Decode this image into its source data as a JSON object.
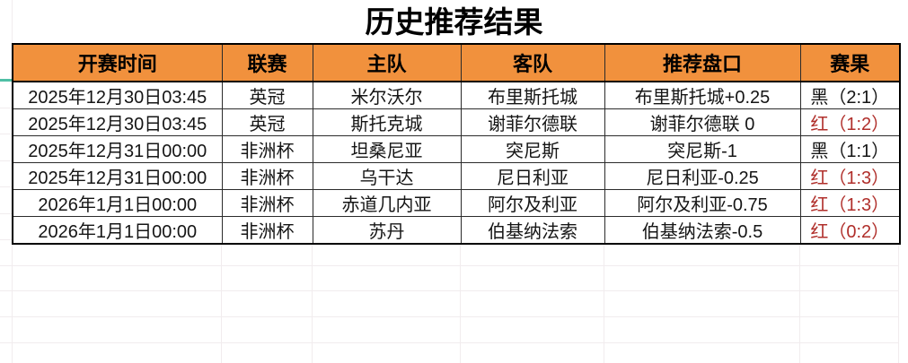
{
  "title": "历史推荐结果",
  "table": {
    "headers": [
      "开赛时间",
      "联赛",
      "主队",
      "客队",
      "推荐盘口",
      "赛果"
    ],
    "rows": [
      {
        "time": "2025年12月30日03:45",
        "league": "英冠",
        "home": "米尔沃尔",
        "away": "布里斯托城",
        "handicap": "布里斯托城+0.25",
        "result": "黑（2:1）",
        "result_color": "black"
      },
      {
        "time": "2025年12月30日03:45",
        "league": "英冠",
        "home": "斯托克城",
        "away": "谢菲尔德联",
        "handicap": "谢菲尔德联 0",
        "result": "红（1:2）",
        "result_color": "red"
      },
      {
        "time": "2025年12月31日00:00",
        "league": "非洲杯",
        "home": "坦桑尼亚",
        "away": "突尼斯",
        "handicap": "突尼斯-1",
        "result": "黑（1:1）",
        "result_color": "black"
      },
      {
        "time": "2025年12月31日00:00",
        "league": "非洲杯",
        "home": "乌干达",
        "away": "尼日利亚",
        "handicap": "尼日利亚-0.25",
        "result": "红（1:3）",
        "result_color": "red"
      },
      {
        "time": "2026年1月1日00:00",
        "league": "非洲杯",
        "home": "赤道几内亚",
        "away": "阿尔及利亚",
        "handicap": "阿尔及利亚-0.75",
        "result": "红（1:3）",
        "result_color": "red"
      },
      {
        "time": "2026年1月1日00:00",
        "league": "非洲杯",
        "home": "苏丹",
        "away": "伯基纳法索",
        "handicap": "伯基纳法索-0.5",
        "result": "红（0:2）",
        "result_color": "red"
      }
    ]
  },
  "colors": {
    "header_bg": "#f1913d",
    "red_result": "#b02f2b",
    "selection_teal": "#4fbfa5",
    "gridline": "#f1ecee"
  }
}
